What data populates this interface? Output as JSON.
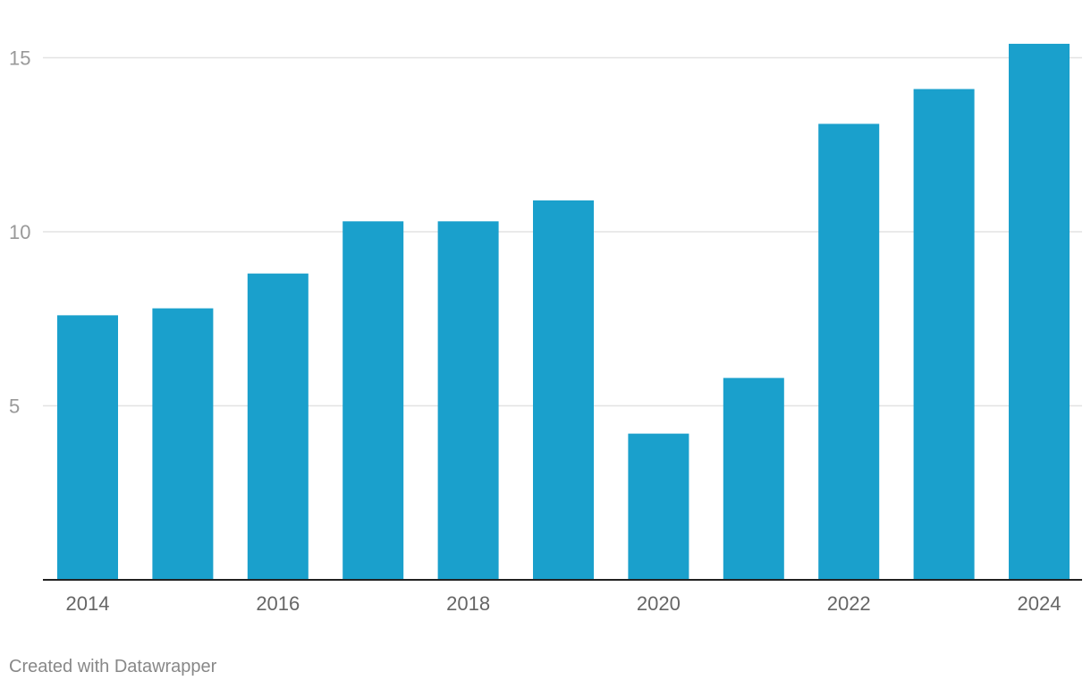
{
  "chart_data": {
    "type": "bar",
    "categories": [
      "2014",
      "2015",
      "2016",
      "2017",
      "2018",
      "2019",
      "2020",
      "2021",
      "2022",
      "2023",
      "2024"
    ],
    "values": [
      7.6,
      7.8,
      8.8,
      10.3,
      10.3,
      10.9,
      4.2,
      5.8,
      13.1,
      14.1,
      15.4
    ],
    "x_tick_labels": [
      "2014",
      "2016",
      "2018",
      "2020",
      "2022",
      "2024"
    ],
    "y_ticks": [
      5,
      10,
      15
    ],
    "ylim": [
      0,
      16
    ],
    "grid": true,
    "bar_color": "#1aa0cc",
    "title": "",
    "xlabel": "",
    "ylabel": ""
  },
  "footer": {
    "credit": "Created with Datawrapper"
  }
}
